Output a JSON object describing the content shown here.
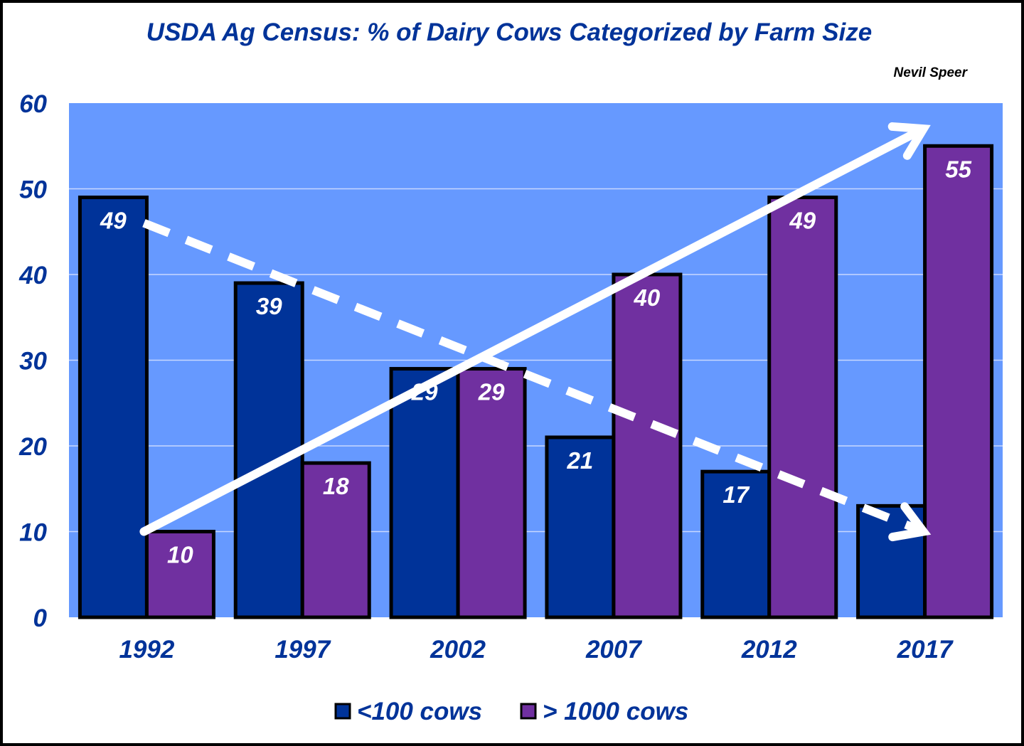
{
  "chart_data": {
    "type": "bar",
    "title": "USDA Ag Census:  % of Dairy Cows Categorized by Farm Size",
    "author": "Nevil Speer",
    "xlabel": "",
    "ylabel": "",
    "categories": [
      "1992",
      "1997",
      "2002",
      "2007",
      "2012",
      "2017"
    ],
    "ylim": [
      0,
      60
    ],
    "yticks": [
      0,
      10,
      20,
      30,
      40,
      50,
      60
    ],
    "grid": true,
    "legend_position": "bottom",
    "series": [
      {
        "name": "<100 cows",
        "values": [
          49,
          39,
          29,
          21,
          17,
          13
        ],
        "color": "#003399"
      },
      {
        "name": "> 1000 cows",
        "values": [
          10,
          18,
          29,
          40,
          49,
          55
        ],
        "color": "#7030A0"
      }
    ],
    "data_labels": {
      "<100 cows": [
        "49",
        "39",
        "29",
        "21",
        "17",
        ""
      ],
      "> 1000 cows": [
        "10",
        "18",
        "29",
        "40",
        "49",
        "55"
      ]
    },
    "annotations": [
      {
        "type": "trend-arrow",
        "style": "solid",
        "color": "#ffffff",
        "from": {
          "x": "1992",
          "y": 10
        },
        "to": {
          "x": "2017",
          "y": 57
        }
      },
      {
        "type": "trend-arrow",
        "style": "dashed",
        "color": "#ffffff",
        "from": {
          "x": "1992",
          "y": 46
        },
        "to": {
          "x": "2017",
          "y": 10
        }
      }
    ],
    "plot_background": "#6699FF",
    "text_color": "#003399"
  }
}
